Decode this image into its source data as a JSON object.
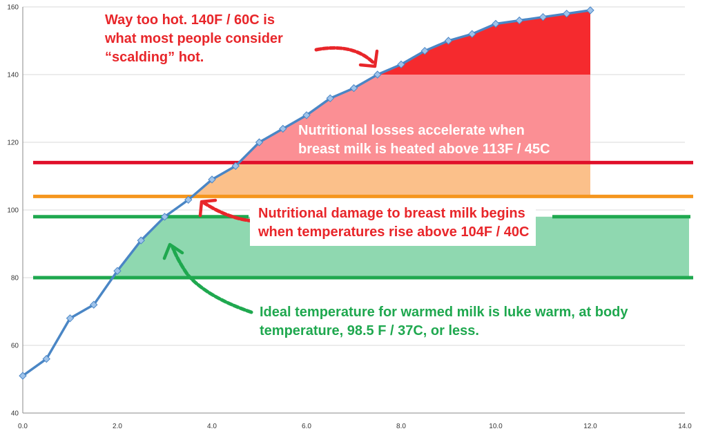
{
  "chart_data": {
    "type": "line",
    "x": [
      0,
      0.5,
      1.0,
      1.5,
      2.0,
      2.5,
      3.0,
      3.5,
      4.0,
      4.5,
      5.0,
      5.5,
      6.0,
      6.5,
      7.0,
      7.5,
      8.0,
      8.5,
      9.0,
      9.5,
      10.0,
      10.5,
      11.0,
      11.5,
      12.0
    ],
    "series": [
      {
        "values": [
          51,
          56,
          68,
          72,
          82,
          91,
          98,
          103,
          109,
          113,
          120,
          124,
          128,
          133,
          136,
          140,
          143,
          147,
          150,
          152,
          155,
          156,
          157,
          158,
          159
        ]
      }
    ],
    "xlim": [
      0,
      14
    ],
    "ylim": [
      40,
      160
    ],
    "xticks": [
      "0.0",
      "2.0",
      "4.0",
      "6.0",
      "8.0",
      "10.0",
      "12.0",
      "14.0"
    ],
    "yticks": [
      "40",
      "60",
      "80",
      "100",
      "120",
      "140",
      "160"
    ],
    "grid": "horizontal",
    "reference_lines": [
      {
        "y": 114,
        "color": "#e0102a"
      },
      {
        "y": 104,
        "color": "#f5961e"
      },
      {
        "y": 98,
        "color": "#1fa84f"
      },
      {
        "y": 80,
        "color": "#1fa84f"
      }
    ],
    "bands": [
      {
        "from": 80,
        "to": 98,
        "color": "#8fd8b0"
      },
      {
        "from": 104,
        "to": 114,
        "color": "#fbc08a"
      },
      {
        "from": 114,
        "to": 140,
        "color": "#fb8f94"
      },
      {
        "from": 140,
        "to": 160,
        "color": "#f52a2e"
      }
    ],
    "annotations": {
      "hot": [
        "Way too hot. 140F / 60C is",
        "what most people consider",
        "“scalding” hot."
      ],
      "losses": [
        "Nutritional losses accelerate when",
        "breast milk is heated above 113F / 45C"
      ],
      "damage": [
        "Nutritional damage to breast milk begins",
        "when temperatures rise above 104F / 40C"
      ],
      "ideal": [
        "Ideal temperature for warmed milk is luke warm, at body",
        "temperature, 98.5 F / 37C, or less."
      ]
    },
    "colors": {
      "line": "#4a86c5",
      "marker": "#9fc3ea",
      "grid": "#d9d9d9",
      "arrow_red": "#e8262a",
      "arrow_green": "#1fa84f"
    }
  }
}
